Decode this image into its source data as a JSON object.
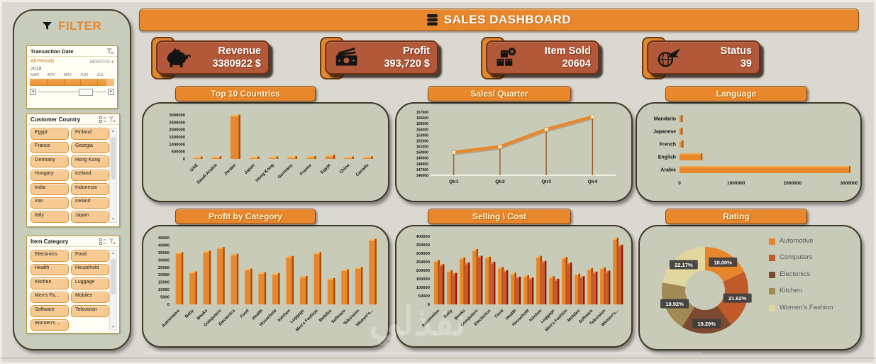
{
  "header": {
    "title": "SALES DASHBOARD"
  },
  "filter_panel": {
    "title": "FILTER",
    "transaction_date": {
      "title": "Transaction Date",
      "period_label": "All Periods",
      "granularity": "MONTHS",
      "year": "2018",
      "months": [
        "MAR",
        "APR",
        "MAY",
        "JUN",
        "JUL"
      ]
    },
    "customer_country": {
      "title": "Customer Country",
      "items": [
        "Egypt",
        "Finland",
        "France",
        "Georgia",
        "Germany",
        "Hong Kong",
        "Hungary",
        "Iceland",
        "India",
        "Indonesia",
        "Iran",
        "Ireland",
        "Italy",
        "Japan"
      ]
    },
    "item_category": {
      "title": "Item Category",
      "items": [
        "Electonics",
        "Food",
        "Health",
        "Household",
        "Kitchen",
        "Luggage",
        "Men's Fa...",
        "Mobiles",
        "Software",
        "Television",
        "Women's ..."
      ]
    }
  },
  "kpis": [
    {
      "label": "Revenue",
      "value": "3380922 $",
      "icon": "piggy-bank-icon"
    },
    {
      "label": "Profit",
      "value": "393,720 $",
      "icon": "cash-icon"
    },
    {
      "label": "Item Sold",
      "value": "20604",
      "icon": "boxes-icon"
    },
    {
      "label": "Status",
      "value": "39",
      "icon": "globe-plane-icon"
    }
  ],
  "theme": {
    "accent_orange": "#e8872b",
    "kpi_background": "#b2593a",
    "panel_background": "#c7cbb8",
    "slicer_pill": "#f6ca92",
    "header_text": "#fcf3cd"
  },
  "watermark": {
    "text": "نفذلي"
  },
  "chart_data": [
    {
      "type": "bar",
      "title": "Top 10 Countries",
      "categories": [
        "UAE",
        "Saudi Arabia",
        "Jordan",
        "Japan",
        "Hong Kong",
        "Germany",
        "France",
        "Egypt",
        "China",
        "Canada"
      ],
      "values": [
        40000,
        55000,
        2900000,
        40000,
        45000,
        60000,
        70000,
        160000,
        45000,
        55000
      ],
      "ylim": [
        0,
        3000000
      ],
      "ystep": 500000
    },
    {
      "type": "line",
      "title": "Sales/ Quarter",
      "categories": [
        "Qtr1",
        "Qtr2",
        "Qtr3",
        "Qtr4"
      ],
      "values": [
        150000,
        151000,
        154000,
        156200
      ],
      "ylim": [
        146000,
        157000
      ],
      "ystep": 1000
    },
    {
      "type": "hbar",
      "title": "Language",
      "categories": [
        "Mandarin",
        "Japanese",
        "French",
        "English",
        "Arabic"
      ],
      "values": [
        30000,
        30000,
        45000,
        380000,
        3000000
      ],
      "xlim": [
        0,
        3000000
      ],
      "xticks": [
        0,
        1000000,
        2000000,
        3000000
      ]
    },
    {
      "type": "bar",
      "title": "Profit by Category",
      "categories": [
        "Automotive",
        "Baby",
        "Books",
        "Computers",
        "Electonics",
        "Food",
        "Health",
        "Household",
        "Kitchen",
        "Luggage",
        "Men's Fashion",
        "Mobiles",
        "Software",
        "Television",
        "Women's..."
      ],
      "values": [
        34000,
        21000,
        35000,
        37500,
        33000,
        23000,
        20500,
        20000,
        31500,
        18000,
        34000,
        16500,
        22500,
        24000,
        43000
      ],
      "ylim": [
        0,
        45000
      ],
      "ystep": 5000
    },
    {
      "type": "bar",
      "title": "Selling \\ Cost",
      "categories": [
        "Automotive",
        "Baby",
        "Books",
        "Computers",
        "Electonics",
        "Food",
        "Health",
        "Household",
        "Kitchen",
        "Luggage",
        "Men's Fashion",
        "Mobiles",
        "Software",
        "Television",
        "Women's..."
      ],
      "series": [
        {
          "name": "Selling",
          "color": "#e8872b",
          "values": [
            250000,
            190000,
            265000,
            315000,
            270000,
            210000,
            175000,
            162000,
            275000,
            155000,
            268000,
            170000,
            202000,
            208000,
            380000
          ]
        },
        {
          "name": "Cost",
          "color": "#c85a2d",
          "values": [
            225000,
            175000,
            235000,
            275000,
            240000,
            190000,
            152000,
            147000,
            245000,
            140000,
            235000,
            155000,
            182000,
            188000,
            340000
          ]
        }
      ],
      "ylim": [
        0,
        400000
      ],
      "ystep": 50000
    },
    {
      "type": "donut",
      "title": "Rating",
      "slices": [
        {
          "label": "Automotive",
          "value": 18.0,
          "display": "18.00%",
          "color": "#e8862c"
        },
        {
          "label": "Computers",
          "value": 21.62,
          "display": "21.62%",
          "color": "#c05a2b"
        },
        {
          "label": "Electonics",
          "value": 19.29,
          "display": "19.29%",
          "color": "#7d4a31"
        },
        {
          "label": "Kitchen",
          "value": 18.92,
          "display": "18.92%",
          "color": "#a28a54"
        },
        {
          "label": "Women's Fashion",
          "value": 22.17,
          "display": "22.17%",
          "color": "#e2d79f"
        }
      ]
    }
  ]
}
